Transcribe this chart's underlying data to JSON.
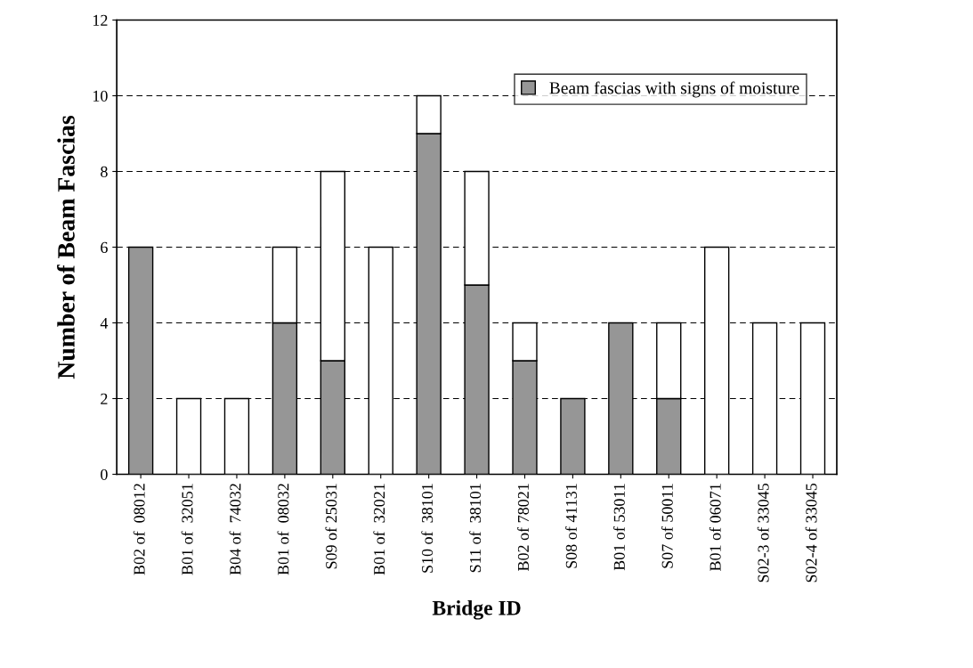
{
  "chart_data": {
    "type": "bar",
    "stacked": true,
    "xlabel": "Bridge ID",
    "ylabel": "Number of Beam Fascias",
    "categories": [
      "B02 of  08012",
      "B01 of  32051",
      "B04 of  74032",
      "B01 of  08032",
      "S09 of 25031",
      "B01 of  32021",
      "S10 of  38101",
      "S11 of  38101",
      "B02 of 78021",
      "S08 of 41131",
      "B01 of 53011",
      "S07 of 50011",
      "B01 of 06071",
      "S02-3 of 33045",
      "S02-4 of 33045"
    ],
    "series": [
      {
        "name": "Beam fascias with signs of moisture",
        "color": "#969696",
        "values": [
          6,
          0,
          0,
          4,
          3,
          0,
          9,
          5,
          3,
          2,
          4,
          2,
          0,
          0,
          0
        ]
      },
      {
        "color": "#ffffff",
        "values": [
          0,
          2,
          2,
          2,
          5,
          6,
          1,
          3,
          1,
          0,
          0,
          2,
          6,
          4,
          4
        ]
      }
    ],
    "ylim": [
      0,
      12
    ],
    "yticks": [
      0,
      2,
      4,
      6,
      8,
      10,
      12
    ],
    "grid": "y",
    "line_style": "dashed",
    "legend": "top right"
  }
}
